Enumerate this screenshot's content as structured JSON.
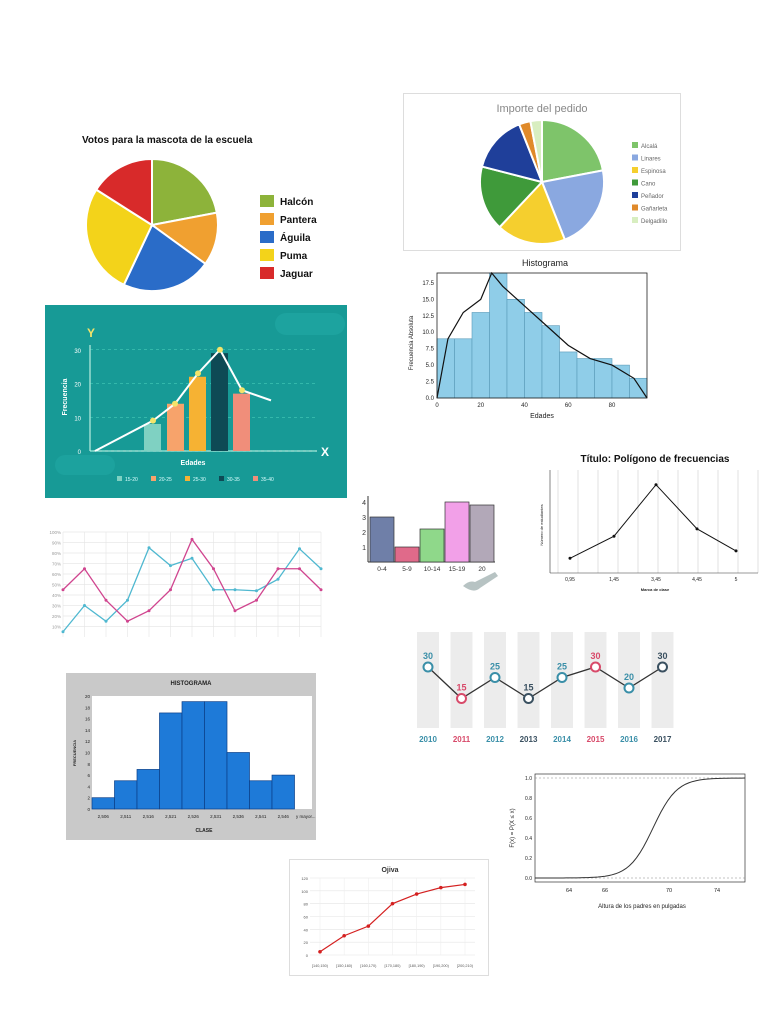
{
  "chart_data": [
    {
      "id": "mascota",
      "type": "pie",
      "title": "Votos para la mascota de la escuela",
      "labels": [
        "Halcón",
        "Pantera",
        "Águila",
        "Puma",
        "Jaguar"
      ],
      "values": [
        22,
        13,
        22,
        27,
        16
      ],
      "colors": [
        "#8db33a",
        "#f0a030",
        "#2a6cc8",
        "#f3d31a",
        "#d82a2a"
      ]
    },
    {
      "id": "pedido",
      "type": "pie",
      "title": "Importe del pedido",
      "labels": [
        "Alcalá",
        "Linares",
        "Espinosa",
        "Cano",
        "Peñador",
        "Gañarleta",
        "Delgadillo"
      ],
      "values": [
        22,
        22,
        18,
        17,
        15,
        3,
        3
      ],
      "colors": [
        "#7ec46a",
        "#8aa8e0",
        "#f5cf2e",
        "#3f9a3a",
        "#1f3f9a",
        "#e08a2a",
        "#d8eec0"
      ]
    },
    {
      "id": "histograma-edades",
      "type": "bar",
      "title": "Histograma",
      "xlabel": "Edades",
      "ylabel": "Frecuencia Absoluta",
      "bin_width": 8,
      "bin_start": 0,
      "values": [
        9,
        9,
        13,
        19,
        15,
        13,
        11,
        7,
        6,
        6,
        5,
        3
      ],
      "curve": [
        [
          0,
          0
        ],
        [
          5,
          9
        ],
        [
          12,
          13
        ],
        [
          20,
          15
        ],
        [
          25,
          19
        ],
        [
          30,
          17
        ],
        [
          40,
          14
        ],
        [
          50,
          11
        ],
        [
          60,
          8
        ],
        [
          70,
          6
        ],
        [
          80,
          5
        ],
        [
          90,
          3
        ],
        [
          96,
          0
        ]
      ],
      "xticks": [
        "0",
        "20",
        "40",
        "60",
        "80"
      ],
      "yticks": [
        "0.0",
        "2.5",
        "5.0",
        "7.5",
        "10.0",
        "12.5",
        "15.0",
        "17.5"
      ],
      "ylim": [
        0,
        19
      ]
    },
    {
      "id": "frecuencia-edades",
      "type": "bar",
      "xlabel": "Edades",
      "ylabel": "Frecuencia",
      "axis_y": "Y",
      "axis_x": "X",
      "categories": [
        "15-20",
        "20-25",
        "25-30",
        "30-35",
        "35-40"
      ],
      "values": [
        8,
        14,
        22,
        29,
        17
      ],
      "line_values": [
        0,
        9,
        14,
        23,
        30,
        18,
        15
      ],
      "yticks": [
        "0",
        "10",
        "20",
        "30"
      ],
      "ylim": [
        0,
        32
      ],
      "colors": [
        "#7fd1c2",
        "#f7a36b",
        "#f6b233",
        "#0e4a55",
        "#f08e7a"
      ]
    },
    {
      "id": "lineas",
      "type": "line",
      "yticks": [
        "10%",
        "20%",
        "30%",
        "40%",
        "50%",
        "60%",
        "70%",
        "80%",
        "90%",
        "100%"
      ],
      "ylim": [
        0,
        100
      ],
      "series": [
        {
          "name": "azul",
          "color": "#4fb8d0",
          "values": [
            5,
            30,
            15,
            35,
            85,
            68,
            75,
            45,
            45,
            44,
            55,
            84,
            65
          ]
        },
        {
          "name": "rosa",
          "color": "#d0458f",
          "values": [
            45,
            65,
            35,
            15,
            25,
            45,
            93,
            65,
            25,
            35,
            65,
            65,
            45
          ]
        }
      ]
    },
    {
      "id": "barras-edades",
      "type": "bar",
      "categories": [
        "0-4",
        "5-9",
        "10-14",
        "15-19",
        "20"
      ],
      "values": [
        3,
        1,
        2.2,
        4,
        3.8
      ],
      "yticks": [
        "1",
        "2",
        "3",
        "4"
      ],
      "ylim": [
        0,
        4.2
      ],
      "colors": [
        "#6f7fa8",
        "#e06a8a",
        "#8fd88a",
        "#f2a0e8",
        "#b2a8b8"
      ]
    },
    {
      "id": "poligono",
      "type": "line",
      "title": "Título: Polígono de frecuencias",
      "xlabel": "Marca de clase",
      "ylabel": "Número de estudiantes",
      "categories": [
        "0,95",
        "1,45",
        "3,45",
        "4,45",
        "5"
      ],
      "values": [
        2,
        5,
        12,
        6,
        3
      ],
      "ylim": [
        0,
        14
      ]
    },
    {
      "id": "linea-anios",
      "type": "line",
      "categories": [
        "2010",
        "2011",
        "2012",
        "2013",
        "2014",
        "2015",
        "2016",
        "2017"
      ],
      "values": [
        30,
        15,
        25,
        15,
        25,
        30,
        20,
        30
      ],
      "labels": [
        "30",
        "15",
        "25",
        "15",
        "25",
        "30",
        "20",
        "30"
      ],
      "colors": [
        "#3a8fa8",
        "#d84a6a",
        "#3a8fa8",
        "#3a5060",
        "#3a8fa8",
        "#d84a6a",
        "#3a8fa8",
        "#3a5060"
      ],
      "ylim": [
        0,
        40
      ]
    },
    {
      "id": "histograma-clase",
      "type": "bar",
      "title": "HISTOGRAMA",
      "xlabel": "CLASE",
      "ylabel": "FRECUENCIA",
      "categories": [
        "2,506",
        "2,511",
        "2,516",
        "2,521",
        "2,526",
        "2,531",
        "2,536",
        "2,541",
        "2,546",
        "y mayor..."
      ],
      "values": [
        2,
        5,
        7,
        17,
        19,
        19,
        10,
        5,
        6,
        0
      ],
      "yticks": [
        "0",
        "2",
        "4",
        "6",
        "8",
        "10",
        "12",
        "14",
        "16",
        "18",
        "20"
      ],
      "ylim": [
        0,
        20
      ]
    },
    {
      "id": "acumulada",
      "type": "line",
      "xlabel": "Altura de los padres en pulgadas",
      "ylabel": "F(x) = P(X ≤ x)",
      "xticks": [
        "64",
        "66",
        "70",
        "74"
      ],
      "yticks": [
        "0.0",
        "0.2",
        "0.4",
        "0.6",
        "0.8",
        "1.0"
      ],
      "ylim": [
        0,
        1
      ]
    },
    {
      "id": "ojiva",
      "type": "line",
      "title": "Ojiva",
      "categories": [
        "[140,150)",
        "[150,160)",
        "[160,170)",
        "[170,180)",
        "[180,190)",
        "[190,200)",
        "[200,210)"
      ],
      "values": [
        5,
        30,
        45,
        80,
        95,
        105,
        110
      ],
      "yticks": [
        "0",
        "20",
        "40",
        "60",
        "80",
        "100",
        "120"
      ],
      "ylim": [
        0,
        120
      ]
    }
  ]
}
